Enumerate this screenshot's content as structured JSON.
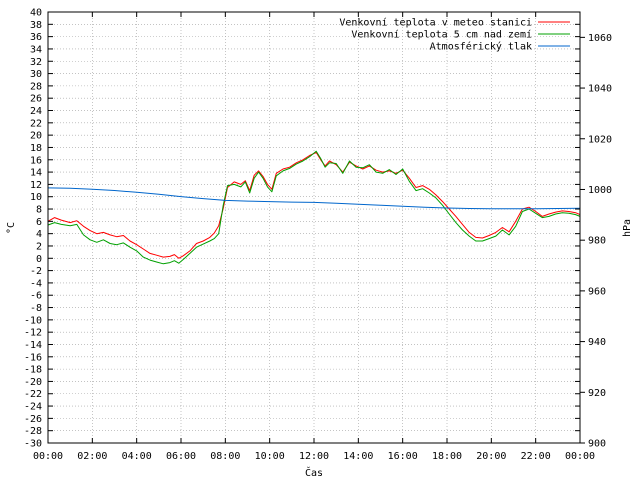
{
  "chart_data": {
    "type": "line",
    "title": "",
    "xlabel": "Čas",
    "ylabel": "°C",
    "y2label": "hPa",
    "ylim": [
      -30,
      40
    ],
    "y2lim": [
      900,
      1070
    ],
    "xlim": [
      0,
      24
    ],
    "grid": true,
    "legend_position": "top-right",
    "x_ticks": [
      "00:00",
      "02:00",
      "04:00",
      "06:00",
      "08:00",
      "10:00",
      "12:00",
      "14:00",
      "16:00",
      "18:00",
      "20:00",
      "22:00",
      "00:00"
    ],
    "y_ticks": [
      "-30",
      "-28",
      "-26",
      "-24",
      "-22",
      "-20",
      "-18",
      "-16",
      "-14",
      "-12",
      "-10",
      "-8",
      "-6",
      "-4",
      "-2",
      "0",
      "2",
      "4",
      "6",
      "8",
      "10",
      "12",
      "14",
      "16",
      "18",
      "20",
      "22",
      "24",
      "26",
      "28",
      "30",
      "32",
      "34",
      "36",
      "38",
      "40"
    ],
    "y2_ticks": [
      "900",
      "920",
      "940",
      "960",
      "980",
      "1000",
      "1020",
      "1040",
      "1060"
    ],
    "series": [
      {
        "name": "Venkovní teplota v meteo stanici",
        "axis": "y",
        "color": "#ff0000",
        "x": [
          0,
          0.3,
          0.6,
          1.0,
          1.3,
          1.6,
          1.9,
          2.2,
          2.5,
          2.8,
          3.1,
          3.4,
          3.7,
          4.0,
          4.3,
          4.6,
          4.9,
          5.2,
          5.5,
          5.7,
          5.9,
          6.1,
          6.4,
          6.7,
          7.0,
          7.3,
          7.5,
          7.7,
          7.9,
          8.1,
          8.4,
          8.7,
          8.9,
          9.1,
          9.3,
          9.5,
          9.7,
          9.9,
          10.1,
          10.3,
          10.6,
          10.9,
          11.2,
          11.5,
          11.8,
          12.1,
          12.3,
          12.5,
          12.7,
          13.0,
          13.3,
          13.6,
          13.9,
          14.2,
          14.5,
          14.8,
          15.1,
          15.4,
          15.7,
          16.0,
          16.3,
          16.6,
          16.9,
          17.2,
          17.5,
          17.8,
          18.1,
          18.4,
          18.7,
          19.0,
          19.3,
          19.6,
          19.9,
          20.2,
          20.5,
          20.8,
          21.1,
          21.4,
          21.7,
          22.0,
          22.3,
          22.6,
          22.9,
          23.2,
          23.5,
          23.8,
          24.0
        ],
        "values": [
          6.0,
          6.6,
          6.2,
          5.8,
          6.1,
          5.2,
          4.5,
          4.0,
          4.2,
          3.8,
          3.5,
          3.7,
          2.8,
          2.2,
          1.5,
          0.8,
          0.5,
          0.2,
          0.3,
          0.6,
          0.0,
          0.4,
          1.2,
          2.4,
          2.8,
          3.4,
          4.1,
          5.3,
          8.0,
          11.5,
          12.4,
          12.0,
          12.6,
          11.0,
          13.5,
          14.2,
          13.3,
          12.0,
          11.2,
          13.8,
          14.5,
          14.8,
          15.5,
          16.0,
          16.7,
          17.2,
          16.0,
          15.0,
          15.8,
          15.2,
          14.0,
          15.6,
          15.0,
          14.5,
          15.0,
          14.3,
          14.0,
          14.2,
          13.8,
          14.3,
          13.0,
          11.5,
          11.8,
          11.2,
          10.3,
          9.2,
          8.0,
          6.8,
          5.5,
          4.2,
          3.4,
          3.3,
          3.7,
          4.2,
          5.0,
          4.3,
          6.0,
          8.0,
          8.3,
          7.6,
          6.8,
          7.2,
          7.5,
          7.7,
          7.6,
          7.4,
          7.1
        ]
      },
      {
        "name": "Venkovní teplota 5 cm nad zemí",
        "axis": "y",
        "color": "#00a000",
        "x": [
          0,
          0.3,
          0.6,
          1.0,
          1.3,
          1.6,
          1.9,
          2.2,
          2.5,
          2.8,
          3.1,
          3.4,
          3.7,
          4.0,
          4.3,
          4.6,
          4.9,
          5.2,
          5.5,
          5.7,
          5.9,
          6.1,
          6.4,
          6.7,
          7.0,
          7.3,
          7.5,
          7.7,
          7.9,
          8.1,
          8.4,
          8.7,
          8.9,
          9.1,
          9.3,
          9.5,
          9.7,
          9.9,
          10.1,
          10.3,
          10.6,
          10.9,
          11.2,
          11.5,
          11.8,
          12.1,
          12.3,
          12.5,
          12.7,
          13.0,
          13.3,
          13.6,
          13.9,
          14.2,
          14.5,
          14.8,
          15.1,
          15.4,
          15.7,
          16.0,
          16.3,
          16.6,
          16.9,
          17.2,
          17.5,
          17.8,
          18.1,
          18.4,
          18.7,
          19.0,
          19.3,
          19.6,
          19.9,
          20.2,
          20.5,
          20.8,
          21.1,
          21.4,
          21.7,
          22.0,
          22.3,
          22.6,
          22.9,
          23.2,
          23.5,
          23.8,
          24.0
        ],
        "values": [
          5.4,
          5.8,
          5.5,
          5.3,
          5.5,
          3.8,
          3.0,
          2.6,
          3.0,
          2.4,
          2.2,
          2.5,
          1.8,
          1.2,
          0.2,
          -0.3,
          -0.6,
          -0.9,
          -0.7,
          -0.4,
          -0.8,
          -0.2,
          0.8,
          1.8,
          2.3,
          2.8,
          3.2,
          4.0,
          8.5,
          11.8,
          12.0,
          11.6,
          12.4,
          10.6,
          13.0,
          14.0,
          13.0,
          11.6,
          10.8,
          13.4,
          14.2,
          14.6,
          15.3,
          15.8,
          16.5,
          17.4,
          16.2,
          14.8,
          15.5,
          15.4,
          13.8,
          15.8,
          14.8,
          14.7,
          15.2,
          14.0,
          13.8,
          14.4,
          13.6,
          14.5,
          12.5,
          11.0,
          11.3,
          10.6,
          9.8,
          8.6,
          7.2,
          5.8,
          4.6,
          3.6,
          2.8,
          2.8,
          3.2,
          3.6,
          4.6,
          3.8,
          5.2,
          7.6,
          8.0,
          7.3,
          6.6,
          6.8,
          7.2,
          7.4,
          7.3,
          7.1,
          6.8
        ]
      },
      {
        "name": "Atmosférický tlak",
        "axis": "y2",
        "color": "#0066cc",
        "x": [
          0,
          1,
          2,
          3,
          4,
          5,
          6,
          7,
          8,
          9,
          10,
          11,
          12,
          13,
          14,
          15,
          16,
          17,
          18,
          19,
          20,
          21,
          22,
          23,
          24
        ],
        "values": [
          1000.6,
          1000.5,
          1000.1,
          999.6,
          998.9,
          998.1,
          997.2,
          996.4,
          995.7,
          995.4,
          995.2,
          995.0,
          994.9,
          994.6,
          994.2,
          993.8,
          993.4,
          993.0,
          992.7,
          992.5,
          992.4,
          992.4,
          992.4,
          992.5,
          992.6
        ]
      }
    ]
  }
}
